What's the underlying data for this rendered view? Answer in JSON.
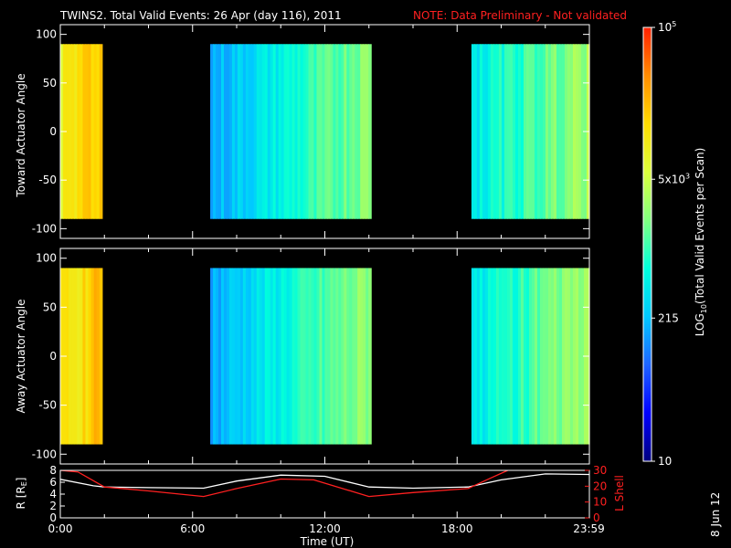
{
  "header": {
    "title": "TWINS2. Total Valid Events: 26 Apr (day 116), 2011",
    "note": "NOTE: Data Preliminary - Not validated"
  },
  "footer": {
    "stamp": "8 Jun 12"
  },
  "colors": {
    "background": "#000000",
    "axes": "#ffffff",
    "note": "#ff2020",
    "r_curve": "#ffffff",
    "l_curve": "#ff2020",
    "colormap": [
      "#00007f",
      "#0000ff",
      "#1e64ff",
      "#00c8ff",
      "#00ffdc",
      "#80ff80",
      "#dcff3c",
      "#ffdc00",
      "#ff8c00",
      "#ff2000"
    ]
  },
  "chart_data": [
    {
      "type": "heatmap",
      "ylabel": "Toward Actuator Angle",
      "xlim": [
        0,
        24
      ],
      "ylim": [
        -110,
        110
      ],
      "yticks": [
        100,
        50,
        0,
        -50,
        -100
      ],
      "y_extent": [
        -90,
        90
      ],
      "data_blocks": [
        {
          "t_start": 0.0,
          "t_end": 1.9,
          "log_level": [
            0.72,
            0.82
          ]
        },
        {
          "t_start": 6.8,
          "t_end": 14.1,
          "log_level": [
            0.3,
            0.58
          ]
        },
        {
          "t_start": 18.65,
          "t_end": 24.0,
          "log_level": [
            0.4,
            0.6
          ]
        }
      ]
    },
    {
      "type": "heatmap",
      "ylabel": "Away Actuator Angle",
      "xlim": [
        0,
        24
      ],
      "ylim": [
        -110,
        110
      ],
      "yticks": [
        100,
        50,
        0,
        -50,
        -100
      ],
      "y_extent": [
        -90,
        90
      ],
      "data_blocks": [
        {
          "t_start": 0.0,
          "t_end": 1.9,
          "log_level": [
            0.72,
            0.82
          ]
        },
        {
          "t_start": 6.8,
          "t_end": 14.1,
          "log_level": [
            0.3,
            0.58
          ]
        },
        {
          "t_start": 18.65,
          "t_end": 24.0,
          "log_level": [
            0.4,
            0.6
          ]
        }
      ]
    },
    {
      "type": "line",
      "xlabel": "Time (UT)",
      "ylabel": "R [R",
      "ylabel_sub": "E",
      "ylabel_end": "]",
      "y2label": "L Shell",
      "xlim": [
        0,
        24
      ],
      "ylim": [
        0,
        8
      ],
      "y2lim": [
        0,
        30
      ],
      "yticks": [
        0,
        2,
        4,
        6,
        8
      ],
      "y2ticks": [
        0,
        10,
        20,
        30
      ],
      "xticks": [
        0,
        6,
        12,
        18,
        23.98
      ],
      "xtick_labels": [
        "0:00",
        "6:00",
        "12:00",
        "18:00",
        "23:59"
      ],
      "series": [
        {
          "axis": "left",
          "color": "#ffffff",
          "x": [
            0,
            1.5,
            2,
            4,
            6.5,
            8,
            10,
            12,
            14,
            16,
            18.5,
            20,
            22,
            23.98
          ],
          "y": [
            6.5,
            5.4,
            5.2,
            5.1,
            5.0,
            6.2,
            7.2,
            7.0,
            5.2,
            5.0,
            5.2,
            6.4,
            7.4,
            7.3
          ]
        },
        {
          "axis": "right",
          "color": "#ff2020",
          "x": [
            0,
            0.8,
            2,
            4,
            6.5,
            8,
            10,
            11.5,
            14,
            16,
            18.5,
            19.5,
            20.3
          ],
          "y": [
            30,
            29,
            19.5,
            17,
            13.5,
            18.5,
            24.5,
            24,
            13.5,
            16,
            18.5,
            25,
            30
          ]
        }
      ]
    }
  ],
  "colorbar": {
    "ylabel": "LOG",
    "ylabel_sub": "10",
    "ylabel_rest": "(Total Valid Events per Scan)",
    "ticks": [
      {
        "pos": 1.0,
        "base": "10",
        "sup": "5"
      },
      {
        "pos": 0.65,
        "base": "5x10",
        "sup": "3"
      },
      {
        "pos": 0.33,
        "base": "215",
        "sup": ""
      },
      {
        "pos": 0.0,
        "base": "10",
        "sup": ""
      }
    ]
  }
}
